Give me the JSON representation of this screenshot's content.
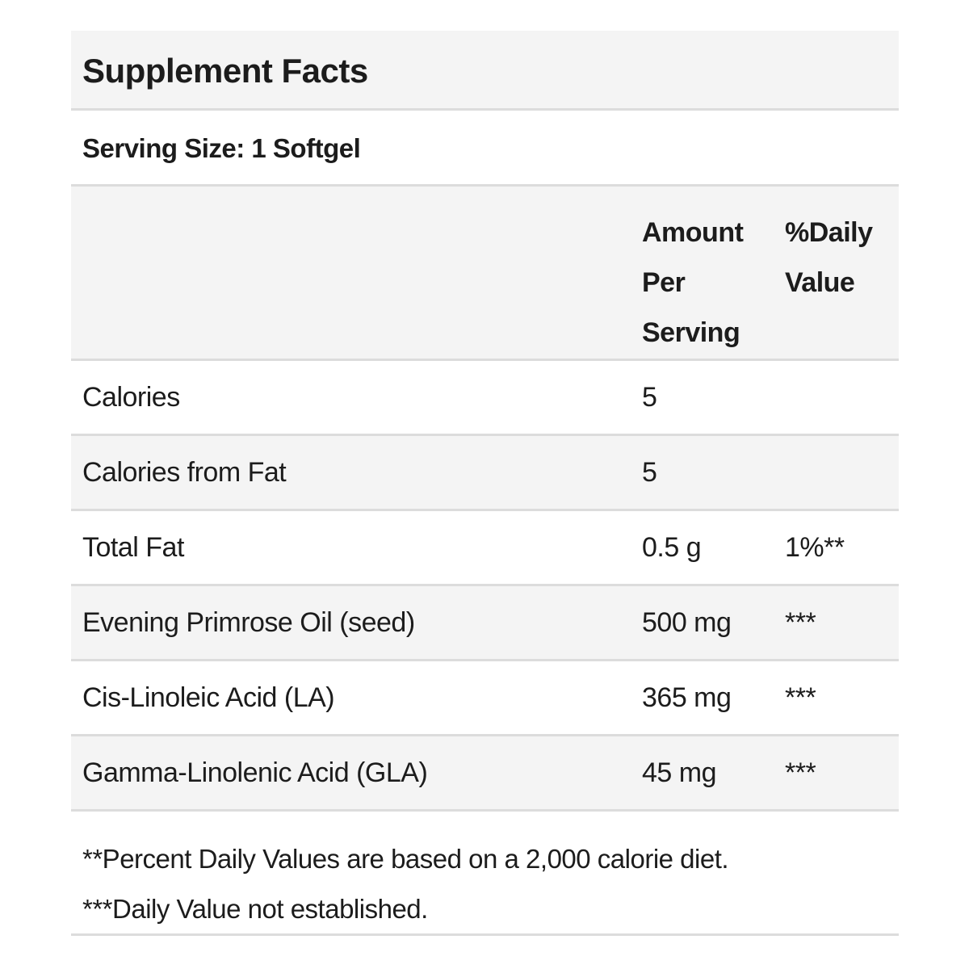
{
  "title": "Supplement Facts",
  "serving_size": "Serving Size: 1 Softgel",
  "columns": {
    "amount": "Amount Per Serving",
    "daily_value": "%Daily Value"
  },
  "rows": [
    {
      "name": "Calories",
      "amount": "5",
      "dv": ""
    },
    {
      "name": "Calories from Fat",
      "amount": "5",
      "dv": ""
    },
    {
      "name": "Total Fat",
      "amount": "0.5 g",
      "dv": "1%**"
    },
    {
      "name": "Evening Primrose Oil (seed)",
      "amount": "500 mg",
      "dv": "***"
    },
    {
      "name": "Cis-Linoleic Acid (LA)",
      "amount": "365 mg",
      "dv": "***"
    },
    {
      "name": "Gamma-Linolenic Acid (GLA)",
      "amount": "45 mg",
      "dv": "***"
    }
  ],
  "footnotes": [
    "**Percent Daily Values are based on a 2,000 calorie diet.",
    "***Daily Value not established."
  ],
  "colors": {
    "row_alt": "#f4f4f4",
    "divider": "#dcdcdc",
    "text": "#1c1c1c"
  }
}
